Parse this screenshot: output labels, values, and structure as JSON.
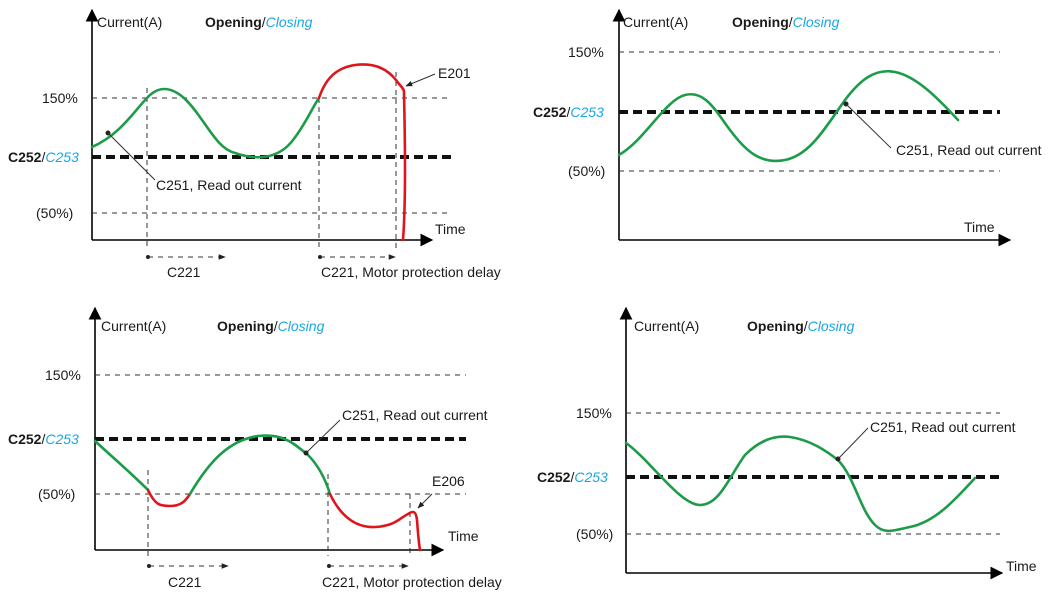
{
  "colors": {
    "normal_curve": "#1c9c48",
    "fault_curve": "#e0151c",
    "closing_text": "#1aa6e0",
    "axis": "#000000"
  },
  "labels": {
    "y_axis": "Current(A)",
    "x_axis": "Time",
    "opening": "Opening",
    "separator": "/",
    "closing": "Closing",
    "level_150": "150%",
    "level_50": "(50%)",
    "threshold_bold": "C252",
    "threshold_italic": "C253",
    "read_out": "C251, Read out current",
    "delay_short": "C221",
    "delay_long": "C221, Motor protection delay",
    "error_overcurrent": "E201",
    "error_undercurrent": "E206"
  }
}
